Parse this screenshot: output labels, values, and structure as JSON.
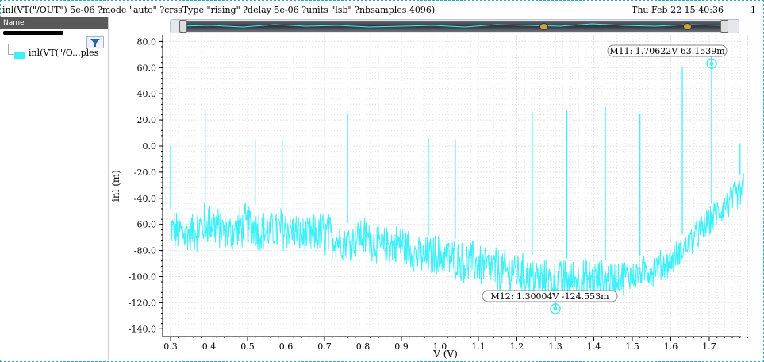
{
  "window": {
    "command": "inl(VT(\"/OUT\") 5e-06 ?mode \"auto\" ?crssType \"rising\" ?delay 5e-06 ?units \"lsb\" ?nbsamples 4096)",
    "timestamp": "Thu Feb 22 15:40:36",
    "edge_char": "1"
  },
  "legend": {
    "header": "Name",
    "trace_label": "inl(VT(\"/O...ples",
    "trace_color": "#40f0f8"
  },
  "colors": {
    "trace": "#40f0f8",
    "grid": "#d6d6d6",
    "axis": "#000000"
  },
  "chart_data": {
    "type": "line",
    "xlabel": "V (V)",
    "ylabel": "inl (m)",
    "xlim": [
      0.3,
      1.8
    ],
    "ylim": [
      -145,
      85
    ],
    "xticks": [
      "0.3",
      "0.4",
      "0.5",
      "0.6",
      "0.7",
      "0.8",
      "0.9",
      "1.0",
      "1.1",
      "1.2",
      "1.3",
      "1.4",
      "1.5",
      "1.6",
      "1.7"
    ],
    "yticks": [
      "80.0",
      "60.0",
      "40.0",
      "20.0",
      "0.0",
      "-20.0",
      "-40.0",
      "-60.0",
      "-80.0",
      "-100.0",
      "-120.0",
      "-140.0"
    ],
    "grid": true,
    "series": [
      {
        "name": "inl(VT(\"/O...ples",
        "envelope": {
          "x": [
            0.3,
            0.35,
            0.4,
            0.45,
            0.5,
            0.55,
            0.6,
            0.65,
            0.7,
            0.75,
            0.8,
            0.85,
            0.9,
            0.95,
            1.0,
            1.05,
            1.1,
            1.15,
            1.2,
            1.25,
            1.3,
            1.35,
            1.4,
            1.45,
            1.5,
            1.55,
            1.6,
            1.65,
            1.7,
            1.75,
            1.79
          ],
          "high": [
            -48,
            -50,
            -40,
            -52,
            -42,
            -50,
            -45,
            -55,
            -48,
            -60,
            -52,
            -62,
            -58,
            -70,
            -66,
            -72,
            -72,
            -78,
            -80,
            -84,
            -88,
            -85,
            -86,
            -88,
            -85,
            -82,
            -76,
            -62,
            -46,
            -30,
            -20
          ],
          "low": [
            -80,
            -84,
            -76,
            -82,
            -78,
            -82,
            -80,
            -84,
            -86,
            -88,
            -86,
            -92,
            -92,
            -100,
            -100,
            -104,
            -108,
            -112,
            -114,
            -118,
            -120,
            -119,
            -118,
            -116,
            -112,
            -108,
            -100,
            -86,
            -70,
            -56,
            -48
          ]
        },
        "spikes": [
          {
            "x": 0.3,
            "y": 0
          },
          {
            "x": 0.39,
            "y": 28
          },
          {
            "x": 0.52,
            "y": 5
          },
          {
            "x": 0.59,
            "y": 5
          },
          {
            "x": 0.76,
            "y": 25
          },
          {
            "x": 0.97,
            "y": 6
          },
          {
            "x": 1.04,
            "y": 5
          },
          {
            "x": 1.24,
            "y": 26
          },
          {
            "x": 1.33,
            "y": 28
          },
          {
            "x": 1.43,
            "y": 30
          },
          {
            "x": 1.52,
            "y": 25
          },
          {
            "x": 1.63,
            "y": 60
          },
          {
            "x": 1.706,
            "y": 63.15
          },
          {
            "x": 1.78,
            "y": 2
          }
        ]
      }
    ],
    "markers": [
      {
        "id": "M11",
        "label": "M11: 1.70622V 63.1539m",
        "x": 1.70622,
        "y": 63.1539
      },
      {
        "id": "M12",
        "label": "M12: 1.30004V -124.553m",
        "x": 1.30004,
        "y": -124.553
      }
    ]
  }
}
